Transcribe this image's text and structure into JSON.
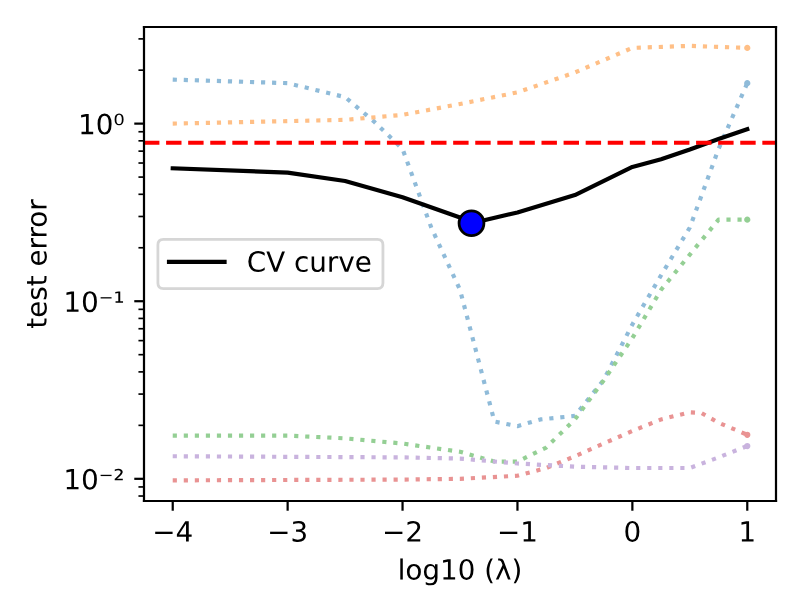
{
  "chart_data": {
    "type": "line",
    "xlabel": "log10 (λ)",
    "ylabel": "test error",
    "log": "y",
    "grid": false,
    "legend": "center left",
    "xlim": [
      -4.25,
      1.25
    ],
    "xticks": [
      {
        "value": -4,
        "label": "−4"
      },
      {
        "value": -3,
        "label": "−3"
      },
      {
        "value": -2,
        "label": "−2"
      },
      {
        "value": -1,
        "label": "−1"
      },
      0,
      1
    ],
    "ylim": [
      0.0075,
      3.5
    ],
    "yticks": [
      {
        "value": 0.01,
        "label": "10⁻²"
      },
      {
        "value": 0.1,
        "label": "10⁻¹"
      },
      {
        "value": 1,
        "label": "10⁰"
      }
    ],
    "ref_lines": [
      {
        "axis": "y",
        "value": 0.78,
        "color": "#ff0000",
        "line_style": "dashed"
      }
    ],
    "series": [
      {
        "color": "#8fbbd9",
        "line_style": "dotted",
        "x": [
          -4,
          -3,
          -2.5,
          -2.25,
          -2,
          -1.75,
          -1.5,
          -1.2,
          -1,
          -0.8,
          -0.5,
          -0.25,
          0,
          0.25,
          0.5,
          0.75,
          1
        ],
        "values": [
          1.77,
          1.69,
          1.41,
          1.03,
          0.72,
          0.26,
          0.116,
          0.021,
          0.0198,
          0.0216,
          0.0226,
          0.036,
          0.074,
          0.14,
          0.26,
          0.72,
          1.69
        ]
      },
      {
        "color": "#ffbf86",
        "line_style": "dotted",
        "x": [
          -4,
          -2.5,
          -2,
          -1.5,
          -1,
          -0.5,
          0,
          0.5,
          1
        ],
        "values": [
          1.0,
          1.05,
          1.12,
          1.29,
          1.5,
          1.94,
          2.67,
          2.74,
          2.67
        ]
      },
      {
        "color": "#94cf94",
        "line_style": "dotted",
        "x": [
          -4,
          -3,
          -2.5,
          -2,
          -1.5,
          -1.2,
          -1,
          -0.75,
          -0.5,
          -0.25,
          0,
          0.25,
          0.5,
          0.75,
          1
        ],
        "values": [
          0.0175,
          0.0175,
          0.0169,
          0.0158,
          0.0142,
          0.0125,
          0.0125,
          0.015,
          0.0216,
          0.0358,
          0.062,
          0.116,
          0.183,
          0.288,
          0.288
        ]
      },
      {
        "color": "#e99393",
        "line_style": "dotted",
        "x": [
          -4,
          -2,
          -1.5,
          -1,
          -0.75,
          -0.5,
          -0.25,
          0,
          0.25,
          0.5,
          0.6,
          0.75,
          1
        ],
        "values": [
          0.0098,
          0.0099,
          0.01,
          0.0104,
          0.0115,
          0.0134,
          0.0158,
          0.0186,
          0.0216,
          0.0237,
          0.0235,
          0.0207,
          0.0177
        ]
      },
      {
        "color": "#c9b3de",
        "line_style": "dotted",
        "x": [
          -4,
          -2,
          -1.5,
          -1,
          -0.5,
          0,
          0.5,
          0.75,
          1
        ],
        "values": [
          0.0134,
          0.0132,
          0.013,
          0.0122,
          0.0117,
          0.0115,
          0.0115,
          0.0132,
          0.0153
        ]
      },
      {
        "name": "CV curve",
        "color": "#000000",
        "line_style": "solid",
        "x": [
          -4,
          -3,
          -2.5,
          -2,
          -1.5,
          -1.4,
          -1,
          -0.5,
          0,
          0.25,
          0.5,
          0.75,
          1
        ],
        "values": [
          0.56,
          0.53,
          0.475,
          0.385,
          0.296,
          0.275,
          0.316,
          0.396,
          0.57,
          0.63,
          0.715,
          0.82,
          0.93
        ]
      },
      {
        "type": "scatter",
        "color": "#0000ff",
        "marker": "circle",
        "x": [
          -1.4
        ],
        "values": [
          0.275
        ]
      }
    ]
  }
}
